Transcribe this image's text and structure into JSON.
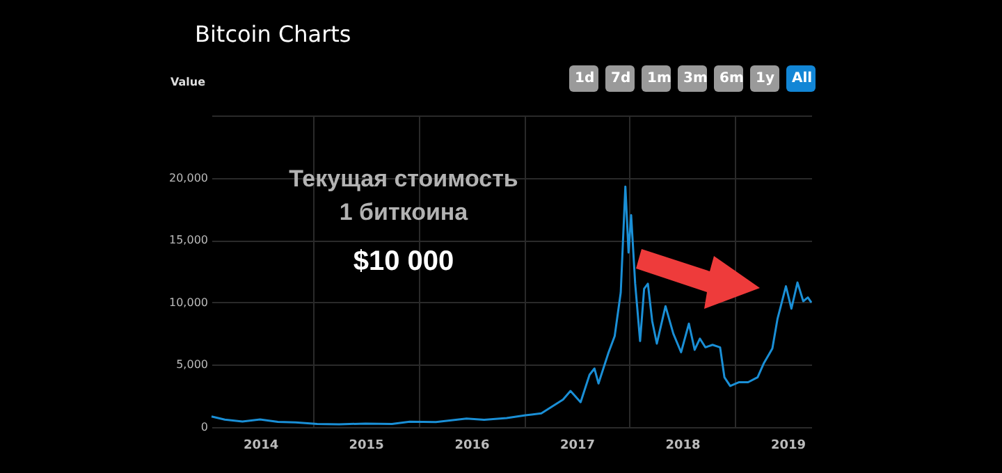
{
  "chart_data": {
    "type": "line",
    "title": "Bitcoin Charts",
    "ylabel": "Value",
    "annotations": [
      "Текущая стоимость 1 биткоина",
      "$10 000",
      "1d",
      "7d",
      "1m",
      "3m",
      "6m",
      "1y",
      "All"
    ],
    "x": [
      "2014-01-14",
      "2014-03-01",
      "2014-05-01",
      "2014-07-01",
      "2014-09-01",
      "2014-11-01",
      "2015-01-15",
      "2015-04-01",
      "2015-07-01",
      "2015-10-01",
      "2015-12-01",
      "2016-03-01",
      "2016-06-15",
      "2016-08-15",
      "2016-11-01",
      "2017-01-05",
      "2017-03-01",
      "2017-05-15",
      "2017-06-10",
      "2017-07-15",
      "2017-08-15",
      "2017-09-01",
      "2017-09-15",
      "2017-10-20",
      "2017-11-10",
      "2017-12-01",
      "2017-12-17",
      "2017-12-28",
      "2018-01-06",
      "2018-01-20",
      "2018-02-06",
      "2018-02-20",
      "2018-03-05",
      "2018-03-20",
      "2018-04-05",
      "2018-05-05",
      "2018-06-01",
      "2018-06-28",
      "2018-07-25",
      "2018-08-14",
      "2018-09-01",
      "2018-09-20",
      "2018-10-15",
      "2018-11-10",
      "2018-11-25",
      "2018-12-15",
      "2019-01-15",
      "2019-02-15",
      "2019-03-20",
      "2019-04-10",
      "2019-05-10",
      "2019-05-28",
      "2019-06-26",
      "2019-07-15",
      "2019-08-05",
      "2019-08-25",
      "2019-09-10",
      "2019-09-22"
    ],
    "series": [
      {
        "color": "#1a8fd6",
        "values": [
          850,
          600,
          450,
          620,
          420,
          370,
          250,
          230,
          280,
          250,
          430,
          410,
          680,
          580,
          730,
          950,
          1100,
          2200,
          2900,
          2000,
          4200,
          4700,
          3500,
          6000,
          7300,
          10800,
          19300,
          14000,
          17000,
          11500,
          6900,
          11100,
          11500,
          8500,
          6700,
          9700,
          7500,
          6000,
          8300,
          6200,
          7100,
          6400,
          6600,
          6400,
          4000,
          3300,
          3600,
          3600,
          4000,
          5100,
          6300,
          8700,
          11300,
          9500,
          11600,
          10100,
          10400,
          10000
        ]
      }
    ],
    "xlim": [
      "2014-01-14",
      "2019-09-22"
    ],
    "xticks": [
      {
        "value": "2014-07-02",
        "label": "2014"
      },
      {
        "value": "2015-01-01",
        "label": null
      },
      {
        "value": "2015-07-02",
        "label": "2015"
      },
      {
        "value": "2016-01-01",
        "label": null
      },
      {
        "value": "2016-07-02",
        "label": "2016"
      },
      {
        "value": "2017-01-01",
        "label": null
      },
      {
        "value": "2017-07-02",
        "label": "2017"
      },
      {
        "value": "2018-01-01",
        "label": null
      },
      {
        "value": "2018-07-02",
        "label": "2018"
      },
      {
        "value": "2019-01-01",
        "label": null
      },
      {
        "value": "2019-07-02",
        "label": "2019"
      }
    ],
    "ylim": [
      0,
      25000
    ],
    "yticks": [
      {
        "value": 0,
        "label": "0"
      },
      {
        "value": 5000,
        "label": "5,000"
      },
      {
        "value": 10000,
        "label": "10,000"
      },
      {
        "value": 15000,
        "label": "15,000"
      },
      {
        "value": 20000,
        "label": "20,000"
      },
      {
        "value": 25000,
        "label": null
      }
    ],
    "grid": true,
    "legend": false,
    "marker": "none",
    "line_style": "solid"
  }
}
